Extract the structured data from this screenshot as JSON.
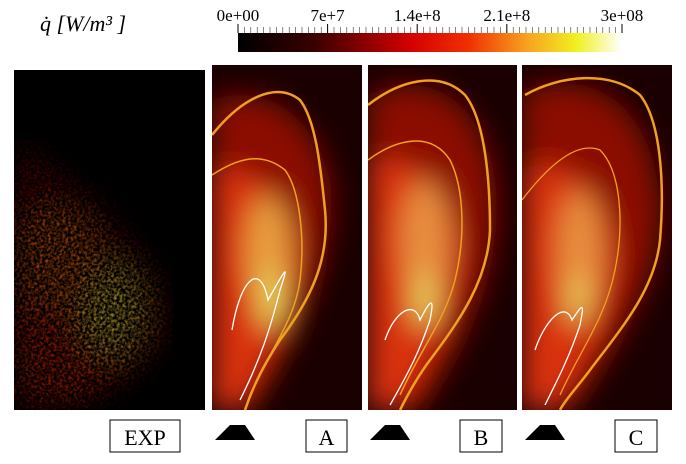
{
  "colorbar": {
    "label": "q̇  [W/m³ ]",
    "range": [
      0,
      300000000
    ],
    "ticks": [
      {
        "value": 0,
        "label": "0e+00"
      },
      {
        "value": 70000000,
        "label": "7e+7"
      },
      {
        "value": 140000000,
        "label": "1.4e+8"
      },
      {
        "value": 210000000,
        "label": "2.1e+8"
      },
      {
        "value": 300000000,
        "label": "3e+08"
      }
    ]
  },
  "panels": [
    {
      "label": "EXP"
    },
    {
      "label": "A"
    },
    {
      "label": "B"
    },
    {
      "label": "C"
    }
  ]
}
